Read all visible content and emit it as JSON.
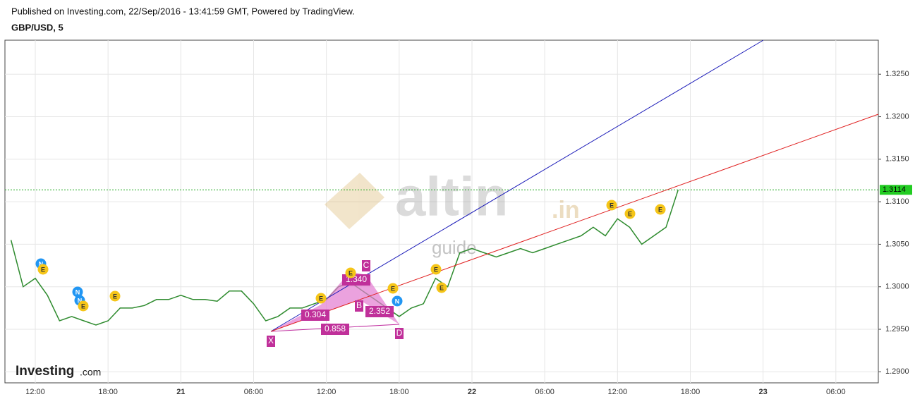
{
  "header": {
    "published": "Published on Investing.com, 22/Sep/2016 - 13:41:59 GMT, Powered by TradingView.",
    "symbol": "GBP/USD, 5"
  },
  "chart_data": {
    "type": "line",
    "color": "#2e8b2e",
    "categories": [
      null,
      null,
      "12:00",
      null,
      null,
      null,
      null,
      null,
      "18:00",
      null,
      null,
      null,
      null,
      null,
      "21",
      null,
      null,
      null,
      null,
      null,
      "06:00",
      null,
      null,
      null,
      null,
      null,
      "12:00",
      null,
      null,
      null,
      null,
      null,
      "18:00",
      null,
      null,
      null,
      null,
      null,
      "22",
      null,
      null,
      null,
      null,
      null,
      "06:00",
      null,
      null,
      null,
      null,
      null,
      "12:00",
      null,
      null,
      null,
      null,
      null,
      "18:00",
      null,
      null,
      null,
      null,
      null,
      "23",
      null,
      null,
      null,
      null,
      null,
      "06:00",
      null,
      null,
      null
    ],
    "values": [
      1.3055,
      1.3,
      1.301,
      1.299,
      1.296,
      1.2965,
      1.296,
      1.2955,
      1.296,
      1.2975,
      1.2975,
      1.2978,
      1.2985,
      1.2985,
      1.299,
      1.2985,
      1.2985,
      1.2983,
      1.2995,
      1.2995,
      1.298,
      1.296,
      1.2965,
      1.2975,
      1.2975,
      1.298,
      1.2985,
      1.3,
      1.3005,
      1.2995,
      1.2985,
      1.2975,
      1.2965,
      1.2975,
      1.298,
      1.301,
      1.3,
      1.304,
      1.3045,
      1.304,
      1.3035,
      1.304,
      1.3045,
      1.304,
      1.3045,
      1.305,
      1.3055,
      1.306,
      1.307,
      1.306,
      1.308,
      1.307,
      1.305,
      1.306,
      1.307,
      1.3114,
      null,
      null,
      null,
      null,
      null,
      null,
      null,
      null,
      null,
      null,
      null,
      null,
      null,
      null,
      null,
      null
    ],
    "ylim": [
      1.2887,
      1.329
    ],
    "yticks": [
      {
        "value": 1.29,
        "label": "1.2900"
      },
      {
        "value": 1.295,
        "label": "1.2950"
      },
      {
        "value": 1.3,
        "label": "1.3000"
      },
      {
        "value": 1.305,
        "label": "1.3050"
      },
      {
        "value": 1.31,
        "label": "1.3100"
      },
      {
        "value": 1.315,
        "label": "1.3150"
      },
      {
        "value": 1.32,
        "label": "1.3200"
      },
      {
        "value": 1.325,
        "label": "1.3250"
      }
    ],
    "grid": true,
    "last_price": {
      "value": 1.3114,
      "label": "1.3114"
    },
    "pattern_points": [
      "X",
      "B",
      "C",
      "D"
    ],
    "pattern_ratios": [
      "0.304",
      "1.340",
      "2.352",
      "0.858"
    ],
    "event_markers": [
      "N",
      "E",
      "N",
      "N",
      "E",
      "E",
      "E",
      "E",
      "E",
      "N",
      "E",
      "E",
      "E",
      "E",
      "E"
    ],
    "watermark": [
      "altin",
      ".in",
      "guide"
    ],
    "logo": [
      "Investing",
      ".com"
    ]
  }
}
